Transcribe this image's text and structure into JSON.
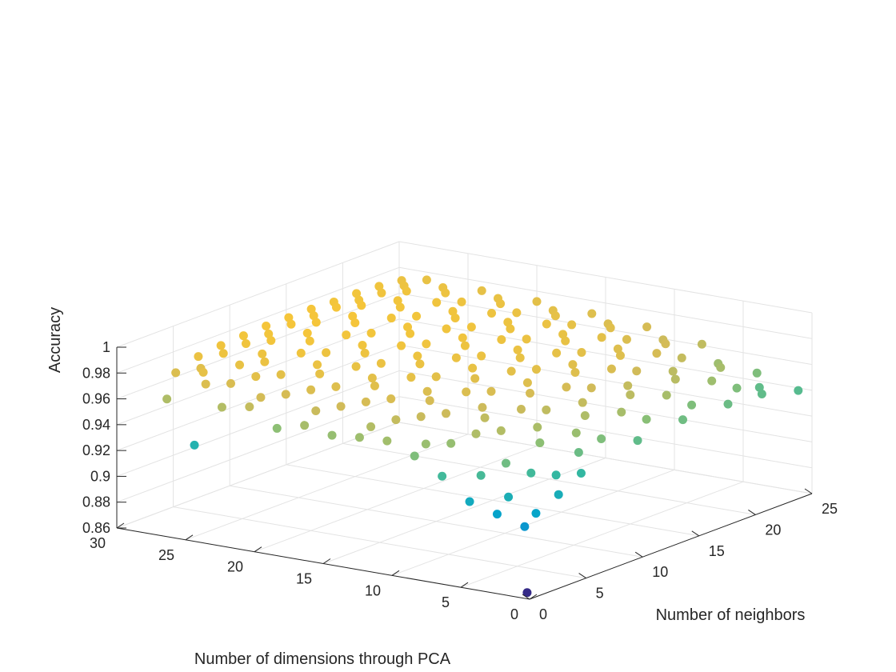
{
  "chart_data": {
    "type": "scatter",
    "projection": "3d",
    "title": "",
    "xlabel": "Number of neighbors",
    "ylabel": "Number of dimensions through PCA",
    "zlabel": "Accuracy",
    "xlim": [
      0,
      25
    ],
    "ylim": [
      0,
      30
    ],
    "zlim": [
      0.86,
      1
    ],
    "x_ticks": [
      0,
      5,
      10,
      15,
      20,
      25
    ],
    "y_ticks": [
      0,
      5,
      10,
      15,
      20,
      25,
      30
    ],
    "z_ticks": [
      0.86,
      0.88,
      0.9,
      0.92,
      0.94,
      0.96,
      0.98,
      1
    ],
    "x_tick_labels": [
      "0",
      "5",
      "10",
      "15",
      "20",
      "25"
    ],
    "y_tick_labels": [
      "0",
      "5",
      "10",
      "15",
      "20",
      "25",
      "30"
    ],
    "z_tick_labels": [
      "0.86",
      "0.88",
      "0.9",
      "0.92",
      "0.94",
      "0.96",
      "0.98",
      "1"
    ],
    "grid": true,
    "colormap": "parula",
    "colormap_stops": [
      "#352a87",
      "#0f5cdd",
      "#1481d6",
      "#06a4ca",
      "#2eb7a4",
      "#87bf77",
      "#d1bb59",
      "#fec832",
      "#f9fb0e"
    ],
    "outlier_points": [
      {
        "x": 1,
        "y": 1,
        "z": 0.86
      }
    ],
    "series": [
      {
        "points": [
          {
            "x": 2,
            "y": 28,
            "z": 0.957
          },
          {
            "x": 2,
            "y": 26,
            "z": 0.925
          },
          {
            "x": 2,
            "y": 24,
            "z": 0.958
          },
          {
            "x": 2,
            "y": 22,
            "z": 0.962
          },
          {
            "x": 2,
            "y": 20,
            "z": 0.949
          },
          {
            "x": 2,
            "y": 18,
            "z": 0.955
          },
          {
            "x": 2,
            "y": 16,
            "z": 0.951
          },
          {
            "x": 2,
            "y": 14,
            "z": 0.953
          },
          {
            "x": 2,
            "y": 12,
            "z": 0.954
          },
          {
            "x": 2,
            "y": 10,
            "z": 0.946
          },
          {
            "x": 2,
            "y": 8,
            "z": 0.934
          },
          {
            "x": 2,
            "y": 6,
            "z": 0.918
          },
          {
            "x": 2,
            "y": 4,
            "z": 0.912
          },
          {
            "x": 2,
            "y": 2,
            "z": 0.906
          },
          {
            "x": 3,
            "y": 26,
            "z": 0.969
          },
          {
            "x": 3,
            "y": 22,
            "z": 0.966
          },
          {
            "x": 3,
            "y": 18,
            "z": 0.963
          },
          {
            "x": 3,
            "y": 14,
            "z": 0.958
          },
          {
            "x": 3,
            "y": 10,
            "z": 0.952
          },
          {
            "x": 3,
            "y": 6,
            "z": 0.935
          },
          {
            "x": 3,
            "y": 4,
            "z": 0.922
          },
          {
            "x": 3,
            "y": 2,
            "z": 0.913
          },
          {
            "x": 4,
            "y": 29,
            "z": 0.969
          },
          {
            "x": 4,
            "y": 27,
            "z": 0.973
          },
          {
            "x": 4,
            "y": 25,
            "z": 0.968
          },
          {
            "x": 4,
            "y": 21,
            "z": 0.967
          },
          {
            "x": 4,
            "y": 17,
            "z": 0.965
          },
          {
            "x": 4,
            "y": 13,
            "z": 0.962
          },
          {
            "x": 4,
            "y": 9,
            "z": 0.951
          },
          {
            "x": 4,
            "y": 5,
            "z": 0.943
          },
          {
            "x": 5,
            "y": 28,
            "z": 0.971
          },
          {
            "x": 5,
            "y": 24,
            "z": 0.972
          },
          {
            "x": 5,
            "y": 20,
            "z": 0.969
          },
          {
            "x": 5,
            "y": 16,
            "z": 0.967
          },
          {
            "x": 5,
            "y": 12,
            "z": 0.963
          },
          {
            "x": 5,
            "y": 8,
            "z": 0.957
          },
          {
            "x": 5,
            "y": 4,
            "z": 0.934
          },
          {
            "x": 5,
            "y": 2,
            "z": 0.921
          },
          {
            "x": 6,
            "y": 29,
            "z": 0.975
          },
          {
            "x": 6,
            "y": 26,
            "z": 0.974
          },
          {
            "x": 6,
            "y": 23,
            "z": 0.972
          },
          {
            "x": 6,
            "y": 19,
            "z": 0.97
          },
          {
            "x": 6,
            "y": 15,
            "z": 0.968
          },
          {
            "x": 6,
            "y": 11,
            "z": 0.964
          },
          {
            "x": 6,
            "y": 7,
            "z": 0.958
          },
          {
            "x": 6,
            "y": 3,
            "z": 0.931
          },
          {
            "x": 7,
            "y": 28,
            "z": 0.976
          },
          {
            "x": 7,
            "y": 25,
            "z": 0.975
          },
          {
            "x": 7,
            "y": 21,
            "z": 0.973
          },
          {
            "x": 7,
            "y": 17,
            "z": 0.971
          },
          {
            "x": 7,
            "y": 13,
            "z": 0.967
          },
          {
            "x": 7,
            "y": 9,
            "z": 0.961
          },
          {
            "x": 7,
            "y": 5,
            "z": 0.949
          },
          {
            "x": 7,
            "y": 2,
            "z": 0.931
          },
          {
            "x": 8,
            "y": 29,
            "z": 0.977
          },
          {
            "x": 8,
            "y": 26,
            "z": 0.976
          },
          {
            "x": 8,
            "y": 22,
            "z": 0.975
          },
          {
            "x": 8,
            "y": 18,
            "z": 0.972
          },
          {
            "x": 8,
            "y": 14,
            "z": 0.969
          },
          {
            "x": 8,
            "y": 10,
            "z": 0.964
          },
          {
            "x": 8,
            "y": 6,
            "z": 0.956
          },
          {
            "x": 8,
            "y": 3,
            "z": 0.942
          },
          {
            "x": 9,
            "y": 28,
            "z": 0.977
          },
          {
            "x": 9,
            "y": 24,
            "z": 0.977
          },
          {
            "x": 9,
            "y": 20,
            "z": 0.974
          },
          {
            "x": 9,
            "y": 16,
            "z": 0.973
          },
          {
            "x": 9,
            "y": 12,
            "z": 0.969
          },
          {
            "x": 9,
            "y": 8,
            "z": 0.963
          },
          {
            "x": 9,
            "y": 4,
            "z": 0.952
          },
          {
            "x": 10,
            "y": 29,
            "z": 0.978
          },
          {
            "x": 10,
            "y": 27,
            "z": 0.978
          },
          {
            "x": 10,
            "y": 23,
            "z": 0.976
          },
          {
            "x": 10,
            "y": 19,
            "z": 0.975
          },
          {
            "x": 10,
            "y": 15,
            "z": 0.972
          },
          {
            "x": 10,
            "y": 11,
            "z": 0.968
          },
          {
            "x": 10,
            "y": 7,
            "z": 0.961
          },
          {
            "x": 10,
            "y": 3,
            "z": 0.946
          },
          {
            "x": 11,
            "y": 28,
            "z": 0.978
          },
          {
            "x": 11,
            "y": 25,
            "z": 0.978
          },
          {
            "x": 11,
            "y": 21,
            "z": 0.976
          },
          {
            "x": 11,
            "y": 17,
            "z": 0.975
          },
          {
            "x": 11,
            "y": 13,
            "z": 0.971
          },
          {
            "x": 11,
            "y": 9,
            "z": 0.967
          },
          {
            "x": 11,
            "y": 5,
            "z": 0.957
          },
          {
            "x": 12,
            "y": 29,
            "z": 0.979
          },
          {
            "x": 12,
            "y": 26,
            "z": 0.979
          },
          {
            "x": 12,
            "y": 22,
            "z": 0.977
          },
          {
            "x": 12,
            "y": 18,
            "z": 0.976
          },
          {
            "x": 12,
            "y": 14,
            "z": 0.974
          },
          {
            "x": 12,
            "y": 10,
            "z": 0.97
          },
          {
            "x": 12,
            "y": 6,
            "z": 0.962
          },
          {
            "x": 12,
            "y": 2,
            "z": 0.94
          },
          {
            "x": 13,
            "y": 28,
            "z": 0.979
          },
          {
            "x": 13,
            "y": 24,
            "z": 0.978
          },
          {
            "x": 13,
            "y": 20,
            "z": 0.977
          },
          {
            "x": 13,
            "y": 16,
            "z": 0.975
          },
          {
            "x": 13,
            "y": 12,
            "z": 0.972
          },
          {
            "x": 13,
            "y": 8,
            "z": 0.967
          },
          {
            "x": 13,
            "y": 4,
            "z": 0.955
          },
          {
            "x": 14,
            "y": 29,
            "z": 0.979
          },
          {
            "x": 14,
            "y": 27,
            "z": 0.979
          },
          {
            "x": 14,
            "y": 23,
            "z": 0.978
          },
          {
            "x": 14,
            "y": 19,
            "z": 0.977
          },
          {
            "x": 14,
            "y": 15,
            "z": 0.975
          },
          {
            "x": 14,
            "y": 11,
            "z": 0.972
          },
          {
            "x": 14,
            "y": 7,
            "z": 0.965
          },
          {
            "x": 14,
            "y": 3,
            "z": 0.948
          },
          {
            "x": 15,
            "y": 28,
            "z": 0.979
          },
          {
            "x": 15,
            "y": 25,
            "z": 0.979
          },
          {
            "x": 15,
            "y": 21,
            "z": 0.978
          },
          {
            "x": 15,
            "y": 17,
            "z": 0.976
          },
          {
            "x": 15,
            "y": 13,
            "z": 0.974
          },
          {
            "x": 15,
            "y": 9,
            "z": 0.97
          },
          {
            "x": 15,
            "y": 5,
            "z": 0.96
          },
          {
            "x": 16,
            "y": 29,
            "z": 0.979
          },
          {
            "x": 16,
            "y": 26,
            "z": 0.979
          },
          {
            "x": 16,
            "y": 22,
            "z": 0.978
          },
          {
            "x": 16,
            "y": 18,
            "z": 0.977
          },
          {
            "x": 16,
            "y": 14,
            "z": 0.975
          },
          {
            "x": 16,
            "y": 10,
            "z": 0.971
          },
          {
            "x": 16,
            "y": 6,
            "z": 0.962
          },
          {
            "x": 16,
            "y": 2,
            "z": 0.943
          },
          {
            "x": 17,
            "y": 28,
            "z": 0.979
          },
          {
            "x": 17,
            "y": 24,
            "z": 0.978
          },
          {
            "x": 17,
            "y": 20,
            "z": 0.977
          },
          {
            "x": 17,
            "y": 16,
            "z": 0.976
          },
          {
            "x": 17,
            "y": 12,
            "z": 0.973
          },
          {
            "x": 17,
            "y": 8,
            "z": 0.968
          },
          {
            "x": 17,
            "y": 4,
            "z": 0.955
          },
          {
            "x": 18,
            "y": 29,
            "z": 0.978
          },
          {
            "x": 18,
            "y": 27,
            "z": 0.979
          },
          {
            "x": 18,
            "y": 23,
            "z": 0.978
          },
          {
            "x": 18,
            "y": 19,
            "z": 0.977
          },
          {
            "x": 18,
            "y": 15,
            "z": 0.975
          },
          {
            "x": 18,
            "y": 11,
            "z": 0.972
          },
          {
            "x": 18,
            "y": 7,
            "z": 0.965
          },
          {
            "x": 18,
            "y": 3,
            "z": 0.946
          },
          {
            "x": 19,
            "y": 28,
            "z": 0.978
          },
          {
            "x": 19,
            "y": 25,
            "z": 0.978
          },
          {
            "x": 19,
            "y": 21,
            "z": 0.977
          },
          {
            "x": 19,
            "y": 17,
            "z": 0.976
          },
          {
            "x": 19,
            "y": 13,
            "z": 0.974
          },
          {
            "x": 19,
            "y": 9,
            "z": 0.97
          },
          {
            "x": 19,
            "y": 5,
            "z": 0.959
          },
          {
            "x": 20,
            "y": 29,
            "z": 0.978
          },
          {
            "x": 20,
            "y": 26,
            "z": 0.978
          },
          {
            "x": 20,
            "y": 22,
            "z": 0.977
          },
          {
            "x": 20,
            "y": 18,
            "z": 0.976
          },
          {
            "x": 20,
            "y": 14,
            "z": 0.974
          },
          {
            "x": 20,
            "y": 10,
            "z": 0.97
          },
          {
            "x": 20,
            "y": 6,
            "z": 0.96
          },
          {
            "x": 20,
            "y": 2,
            "z": 0.942
          },
          {
            "x": 21,
            "y": 28,
            "z": 0.977
          },
          {
            "x": 21,
            "y": 24,
            "z": 0.977
          },
          {
            "x": 21,
            "y": 20,
            "z": 0.976
          },
          {
            "x": 21,
            "y": 16,
            "z": 0.975
          },
          {
            "x": 21,
            "y": 12,
            "z": 0.972
          },
          {
            "x": 21,
            "y": 8,
            "z": 0.967
          },
          {
            "x": 21,
            "y": 4,
            "z": 0.953
          },
          {
            "x": 22,
            "y": 29,
            "z": 0.977
          },
          {
            "x": 22,
            "y": 27,
            "z": 0.977
          },
          {
            "x": 22,
            "y": 23,
            "z": 0.976
          },
          {
            "x": 22,
            "y": 19,
            "z": 0.975
          },
          {
            "x": 22,
            "y": 15,
            "z": 0.973
          },
          {
            "x": 22,
            "y": 11,
            "z": 0.969
          },
          {
            "x": 22,
            "y": 7,
            "z": 0.962
          },
          {
            "x": 22,
            "y": 3,
            "z": 0.946
          },
          {
            "x": 23,
            "y": 28,
            "z": 0.976
          },
          {
            "x": 23,
            "y": 25,
            "z": 0.976
          },
          {
            "x": 23,
            "y": 21,
            "z": 0.975
          },
          {
            "x": 23,
            "y": 17,
            "z": 0.973
          },
          {
            "x": 23,
            "y": 13,
            "z": 0.971
          },
          {
            "x": 23,
            "y": 9,
            "z": 0.966
          },
          {
            "x": 23,
            "y": 5,
            "z": 0.955
          },
          {
            "x": 23,
            "y": 2,
            "z": 0.94
          },
          {
            "x": 24,
            "y": 29,
            "z": 0.975
          },
          {
            "x": 24,
            "y": 26,
            "z": 0.975
          },
          {
            "x": 24,
            "y": 22,
            "z": 0.974
          },
          {
            "x": 24,
            "y": 18,
            "z": 0.972
          },
          {
            "x": 24,
            "y": 14,
            "z": 0.969
          },
          {
            "x": 24,
            "y": 10,
            "z": 0.964
          },
          {
            "x": 24,
            "y": 6,
            "z": 0.953
          },
          {
            "x": 24,
            "y": 3,
            "z": 0.94
          },
          {
            "x": 25,
            "y": 28,
            "z": 0.974
          },
          {
            "x": 25,
            "y": 24,
            "z": 0.973
          },
          {
            "x": 25,
            "y": 20,
            "z": 0.972
          },
          {
            "x": 25,
            "y": 16,
            "z": 0.97
          },
          {
            "x": 25,
            "y": 12,
            "z": 0.967
          },
          {
            "x": 25,
            "y": 8,
            "z": 0.961
          },
          {
            "x": 25,
            "y": 4,
            "z": 0.946
          },
          {
            "x": 25,
            "y": 1,
            "z": 0.938
          }
        ]
      }
    ]
  }
}
